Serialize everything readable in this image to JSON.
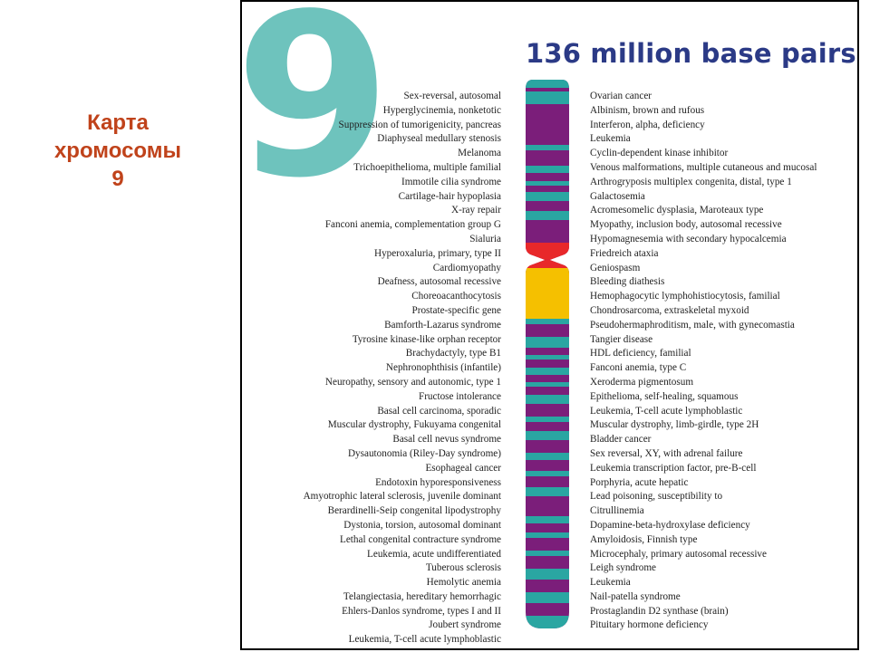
{
  "slide_title": {
    "line1": "Карта",
    "line2": "хромосомы",
    "line3": "9"
  },
  "figure": {
    "numeral": "9",
    "base_pairs": "136 million base pairs",
    "colors": {
      "numeral": "#6ec3bd",
      "title": "#2b3a86",
      "purple": "#7b1e7a",
      "teal": "#2aa6a2",
      "yellow": "#f5c000",
      "centromere": "#e8282a"
    }
  },
  "left_genes": [
    "Sex-reversal, autosomal",
    "Hyperglycinemia, nonketotic",
    "Suppression of tumorigenicity, pancreas",
    "Diaphyseal medullary stenosis",
    "Melanoma",
    "Trichoepithelioma, multiple familial",
    "Immotile cilia syndrome",
    "Cartilage-hair hypoplasia",
    "X-ray repair",
    "Fanconi anemia, complementation group G",
    "Sialuria",
    "Hyperoxaluria, primary, type II",
    "Cardiomyopathy",
    "Deafness, autosomal recessive",
    "Choreoacanthocytosis",
    "Prostate-specific gene",
    "Bamforth-Lazarus syndrome",
    "Tyrosine kinase-like orphan receptor",
    "Brachydactyly, type B1",
    "Nephronophthisis (infantile)",
    "Neuropathy, sensory and autonomic, type 1",
    "Fructose intolerance",
    "Basal cell carcinoma, sporadic",
    "Muscular dystrophy, Fukuyama congenital",
    "Basal cell nevus syndrome",
    "Dysautonomia (Riley-Day syndrome)",
    "Esophageal cancer",
    "Endotoxin hyporesponsiveness",
    "Amyotrophic lateral sclerosis, juvenile dominant",
    "Berardinelli-Seip congenital lipodystrophy",
    "Dystonia, torsion, autosomal dominant",
    "Lethal congenital contracture syndrome",
    "Leukemia, acute undifferentiated",
    "Tuberous sclerosis",
    "Hemolytic anemia",
    "Telangiectasia, hereditary hemorrhagic",
    "Ehlers-Danlos syndrome, types I and II",
    "Joubert syndrome",
    "Leukemia, T-cell acute lymphoblastic"
  ],
  "right_genes": [
    "Ovarian cancer",
    "Albinism, brown and rufous",
    "Interferon, alpha, deficiency",
    "Leukemia",
    "Cyclin-dependent kinase inhibitor",
    "Venous malformations, multiple cutaneous and mucosal",
    "Arthrogryposis multiplex congenita, distal, type 1",
    "Galactosemia",
    "Acromesomelic dysplasia, Maroteaux type",
    "Myopathy, inclusion body, autosomal recessive",
    "Hypomagnesemia with secondary hypocalcemia",
    "Friedreich ataxia",
    "Geniospasm",
    "Bleeding diathesis",
    "Hemophagocytic lymphohistiocytosis, familial",
    "Chondrosarcoma, extraskeletal myxoid",
    "Pseudohermaphroditism, male, with gynecomastia",
    "Tangier disease",
    "HDL deficiency, familial",
    "Fanconi anemia, type C",
    "Xeroderma pigmentosum",
    "Epithelioma, self-healing, squamous",
    "Leukemia, T-cell acute lymphoblastic",
    "Muscular dystrophy, limb-girdle, type 2H",
    "Bladder cancer",
    "Sex reversal, XY, with adrenal failure",
    "Leukemia transcription factor, pre-B-cell",
    "Porphyria, acute hepatic",
    "Lead poisoning, susceptibility to",
    "Citrullinemia",
    "Dopamine-beta-hydroxylase deficiency",
    "Amyloidosis, Finnish type",
    "Microcephaly, primary autosomal recessive",
    "Leigh syndrome",
    "Leukemia",
    "Nail-patella syndrome",
    "Prostaglandin D2 synthase (brain)",
    "Pituitary hormone deficiency"
  ]
}
